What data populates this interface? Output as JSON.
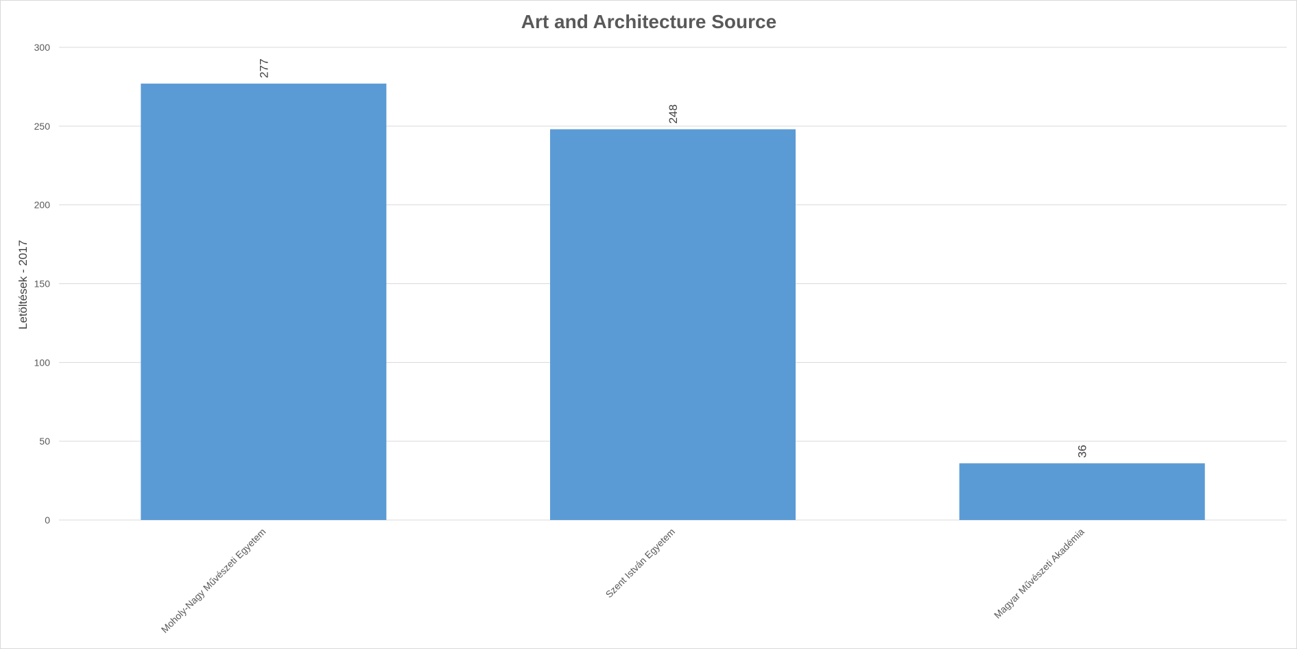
{
  "chart_data": {
    "type": "bar",
    "title": "Art and Architecture Source",
    "xlabel": "",
    "ylabel": "Letöltések - 2017",
    "categories": [
      "Moholy-Nagy Művészeti Egyetem",
      "Szent István Egyetem",
      "Magyar Művészeti Akadémia"
    ],
    "values": [
      277,
      248,
      36
    ],
    "ylim": [
      0,
      300
    ],
    "yticks": [
      0,
      50,
      100,
      150,
      200,
      250,
      300
    ],
    "data_labels": true,
    "grid": true,
    "legend": "none",
    "bar_color": "#5B9BD5"
  }
}
